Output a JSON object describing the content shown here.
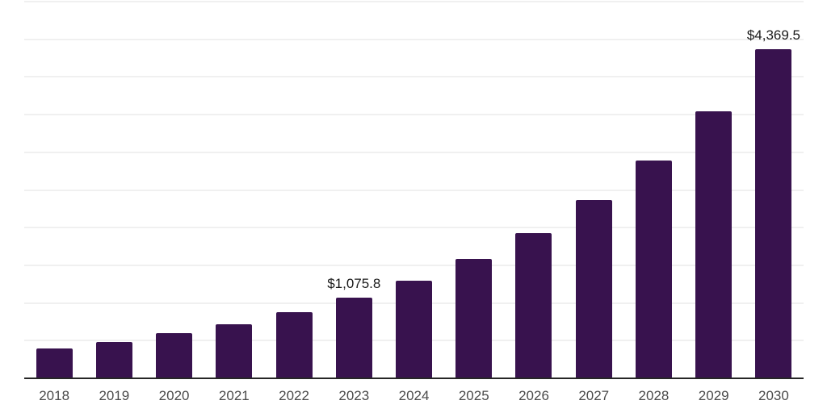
{
  "chart_data": {
    "type": "bar",
    "categories": [
      "2018",
      "2019",
      "2020",
      "2021",
      "2022",
      "2023",
      "2024",
      "2025",
      "2026",
      "2027",
      "2028",
      "2029",
      "2030"
    ],
    "values": [
      400,
      480,
      597,
      718,
      876,
      1075.8,
      1293,
      1586,
      1925,
      2364,
      2892,
      3549,
      4369.5
    ],
    "data_labels": [
      "",
      "",
      "",
      "",
      "",
      "$1,075.8",
      "",
      "",
      "",
      "",
      "",
      "",
      "$4,369.5"
    ],
    "ylim": [
      0,
      5000
    ],
    "grid_step": 500,
    "grid": "horizontal",
    "legend": "none",
    "colors": {
      "bar": "#38124E",
      "axis_line": "#262626",
      "gridline": "#F0F0F0",
      "data_label": "#1A1A1A",
      "tick_label": "#4A4A4A",
      "background": "#FFFFFF"
    }
  }
}
